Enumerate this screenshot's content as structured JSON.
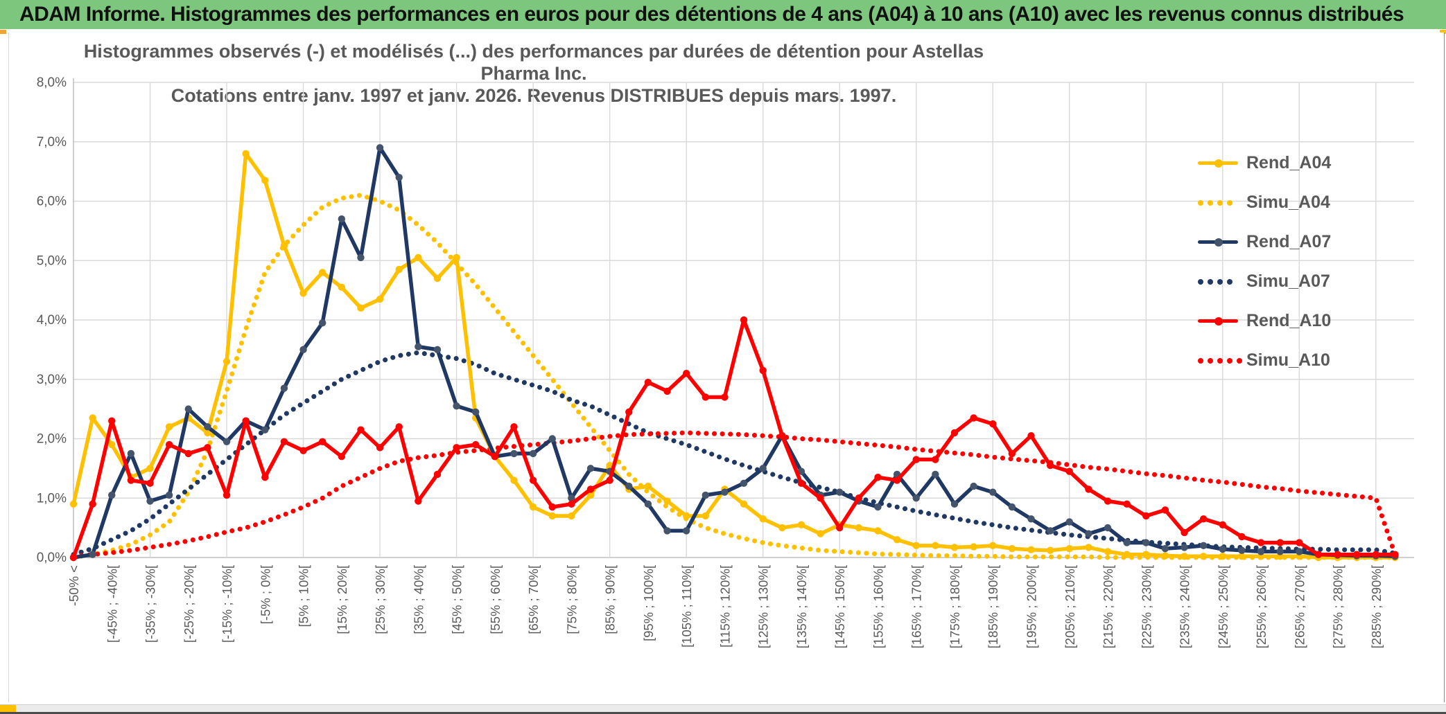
{
  "window": {
    "title": "ADAM Informe. Histogrammes des performances en euros pour des détentions de 4 ans (A04) à 10 ans (A10) avec les revenus connus distribués"
  },
  "chart": {
    "title_line1": "Histogrammes observés (-) et modélisés (...) des performances par durées de détention pour Astellas Pharma Inc.",
    "title_line2": "Cotations entre janv. 1997 et janv. 2026. Revenus DISTRIBUES depuis mars. 1997.",
    "y_tick_labels": [
      "0,0%",
      "1,0%",
      "2,0%",
      "3,0%",
      "4,0%",
      "5,0%",
      "6,0%",
      "7,0%",
      "8,0%"
    ],
    "colors": {
      "gold": "#FFC000",
      "navy": "#1F3864",
      "navy_marker": "#44546A",
      "red": "#FF0000",
      "grid": "#D9D9D9",
      "axis": "#BFBFBF",
      "text": "#595959"
    }
  },
  "chart_data": {
    "type": "line",
    "title": "Histogrammes observés (-) et modélisés (...) des performances par durées de détention pour Astellas Pharma Inc.",
    "subtitle": "Cotations entre janv. 1997 et janv. 2026. Revenus DISTRIBUES depuis mars. 1997.",
    "xlabel": "",
    "ylabel": "",
    "ylim": [
      0,
      8
    ],
    "y_tick_step_percent": 1,
    "grid": true,
    "legend_position": "right",
    "note": "x axis = performance bins of 5% width; only every second bin is labeled",
    "categories": [
      "-50% <",
      "",
      "[-45% ; -40%[",
      "",
      "[-35% ; -30%[",
      "",
      "[-25% ; -20%[",
      "",
      "[-15% ; -10%[",
      "",
      "[-5% ; 0%[",
      "",
      "[5% ; 10%[",
      "",
      "[15% ; 20%[",
      "",
      "[25% ; 30%[",
      "",
      "[35% ; 40%[",
      "",
      "[45% ; 50%[",
      "",
      "[55% ; 60%[",
      "",
      "[65% ; 70%[",
      "",
      "[75% ; 80%[",
      "",
      "[85% ; 90%[",
      "",
      "[95% ; 100%[",
      "",
      "[105% ; 110%[",
      "",
      "[115% ; 120%[",
      "",
      "[125% ; 130%[",
      "",
      "[135% ; 140%[",
      "",
      "[145% ; 150%[",
      "",
      "[155% ; 160%[",
      "",
      "[165% ; 170%[",
      "",
      "[175% ; 180%[",
      "",
      "[185% ; 190%[",
      "",
      "[195% ; 200%[",
      "",
      "[205% ; 210%[",
      "",
      "[215% ; 220%[",
      "",
      "[225% ; 230%[",
      "",
      "[235% ; 240%[",
      "",
      "[245% ; 250%[",
      "",
      "[255% ; 260%[",
      "",
      "[265% ; 270%[",
      "",
      "[275% ; 280%[",
      "",
      "[285% ; 290%[",
      ""
    ],
    "series": [
      {
        "name": "Rend_A04",
        "style": "solid",
        "color": "#FFC000",
        "marker_color": "#FFC000",
        "values": [
          0.9,
          2.35,
          1.9,
          1.35,
          1.5,
          2.2,
          2.35,
          2.1,
          3.3,
          6.8,
          6.35,
          5.25,
          4.45,
          4.8,
          4.55,
          4.2,
          4.35,
          4.85,
          5.05,
          4.7,
          5.05,
          2.35,
          1.7,
          1.3,
          0.85,
          0.7,
          0.7,
          1.05,
          1.55,
          1.15,
          1.2,
          0.95,
          0.7,
          0.7,
          1.15,
          0.9,
          0.65,
          0.5,
          0.55,
          0.4,
          0.55,
          0.5,
          0.45,
          0.3,
          0.2,
          0.2,
          0.17,
          0.18,
          0.2,
          0.15,
          0.13,
          0.12,
          0.15,
          0.17,
          0.1,
          0.05,
          0.05,
          0.03,
          0.02,
          0.02,
          0.02,
          0.02,
          0.02,
          0.02,
          0.02,
          0,
          0,
          0,
          0,
          0
        ]
      },
      {
        "name": "Simu_A04",
        "style": "dotted",
        "color": "#FFC000",
        "marker_color": "#FFC000",
        "values": [
          0,
          0.05,
          0.12,
          0.22,
          0.38,
          0.6,
          1.1,
          1.8,
          2.8,
          3.85,
          4.8,
          5.25,
          5.6,
          5.9,
          6.05,
          6.1,
          6.0,
          5.85,
          5.6,
          5.3,
          4.95,
          4.6,
          4.2,
          3.8,
          3.4,
          3.0,
          2.6,
          2.2,
          1.8,
          1.4,
          1.1,
          0.85,
          0.65,
          0.5,
          0.4,
          0.32,
          0.25,
          0.2,
          0.16,
          0.12,
          0.1,
          0.08,
          0.06,
          0.05,
          0.04,
          0.03,
          0.03,
          0.02,
          0.02,
          0.01,
          0.01,
          0.01,
          0.01,
          0.01,
          0,
          0,
          0,
          0,
          0,
          0,
          0,
          0,
          0,
          0,
          0,
          0,
          0,
          0,
          0,
          0
        ]
      },
      {
        "name": "Rend_A07",
        "style": "solid",
        "color": "#1F3864",
        "marker_color": "#44546A",
        "values": [
          0,
          0.05,
          1.05,
          1.75,
          0.95,
          1.05,
          2.5,
          2.2,
          1.95,
          2.3,
          2.15,
          2.85,
          3.5,
          3.95,
          5.7,
          5.05,
          6.9,
          6.4,
          3.55,
          3.5,
          2.55,
          2.45,
          1.7,
          1.75,
          1.75,
          2.0,
          1.0,
          1.5,
          1.45,
          1.2,
          0.9,
          0.45,
          0.45,
          1.05,
          1.1,
          1.25,
          1.5,
          2.05,
          1.45,
          1.05,
          1.1,
          0.95,
          0.85,
          1.4,
          1.0,
          1.4,
          0.9,
          1.2,
          1.1,
          0.85,
          0.65,
          0.45,
          0.6,
          0.4,
          0.5,
          0.25,
          0.25,
          0.15,
          0.17,
          0.2,
          0.14,
          0.12,
          0.1,
          0.1,
          0.1,
          0.05,
          0.04,
          0.03,
          0.03,
          0.02
        ]
      },
      {
        "name": "Simu_A07",
        "style": "dotted",
        "color": "#1F3864",
        "marker_color": "#1F3864",
        "values": [
          0.05,
          0.15,
          0.3,
          0.45,
          0.65,
          0.9,
          1.15,
          1.4,
          1.65,
          1.9,
          2.15,
          2.4,
          2.6,
          2.8,
          3.0,
          3.15,
          3.3,
          3.4,
          3.45,
          3.4,
          3.35,
          3.25,
          3.1,
          3.0,
          2.9,
          2.8,
          2.65,
          2.55,
          2.4,
          2.25,
          2.1,
          2.0,
          1.9,
          1.78,
          1.66,
          1.55,
          1.45,
          1.35,
          1.26,
          1.18,
          1.1,
          1.0,
          0.92,
          0.85,
          0.78,
          0.72,
          0.66,
          0.6,
          0.55,
          0.5,
          0.46,
          0.42,
          0.38,
          0.35,
          0.32,
          0.29,
          0.26,
          0.24,
          0.22,
          0.2,
          0.18,
          0.17,
          0.16,
          0.15,
          0.14,
          0.14,
          0.13,
          0.13,
          0.13,
          0.07
        ]
      },
      {
        "name": "Rend_A10",
        "style": "solid",
        "color": "#FF0000",
        "marker_color": "#FF0000",
        "values": [
          0,
          0.9,
          2.3,
          1.3,
          1.25,
          1.9,
          1.75,
          1.85,
          1.05,
          2.3,
          1.35,
          1.95,
          1.8,
          1.95,
          1.7,
          2.15,
          1.85,
          2.2,
          0.95,
          1.4,
          1.85,
          1.9,
          1.7,
          2.2,
          1.3,
          0.85,
          0.9,
          1.15,
          1.3,
          2.45,
          2.95,
          2.8,
          3.1,
          2.7,
          2.7,
          4.0,
          3.15,
          2.05,
          1.25,
          1.0,
          0.5,
          1.0,
          1.35,
          1.3,
          1.65,
          1.65,
          2.1,
          2.35,
          2.25,
          1.75,
          2.05,
          1.55,
          1.45,
          1.15,
          0.95,
          0.9,
          0.7,
          0.8,
          0.42,
          0.65,
          0.55,
          0.35,
          0.25,
          0.25,
          0.25,
          0.05,
          0.05,
          0.05,
          0.05,
          0.05
        ]
      },
      {
        "name": "Simu_A10",
        "style": "dotted",
        "color": "#FF0000",
        "marker_color": "#FF0000",
        "values": [
          0.02,
          0.05,
          0.08,
          0.12,
          0.17,
          0.22,
          0.28,
          0.35,
          0.43,
          0.5,
          0.6,
          0.72,
          0.85,
          1.0,
          1.2,
          1.35,
          1.5,
          1.62,
          1.68,
          1.72,
          1.77,
          1.8,
          1.84,
          1.87,
          1.9,
          1.93,
          1.96,
          2.0,
          2.04,
          2.07,
          2.08,
          2.09,
          2.1,
          2.09,
          2.08,
          2.07,
          2.05,
          2.03,
          2.0,
          1.98,
          1.95,
          1.92,
          1.89,
          1.86,
          1.82,
          1.79,
          1.76,
          1.73,
          1.69,
          1.66,
          1.63,
          1.6,
          1.56,
          1.52,
          1.49,
          1.45,
          1.41,
          1.38,
          1.34,
          1.3,
          1.27,
          1.23,
          1.19,
          1.16,
          1.12,
          1.09,
          1.06,
          1.03,
          1.0,
          0.05
        ]
      }
    ]
  }
}
